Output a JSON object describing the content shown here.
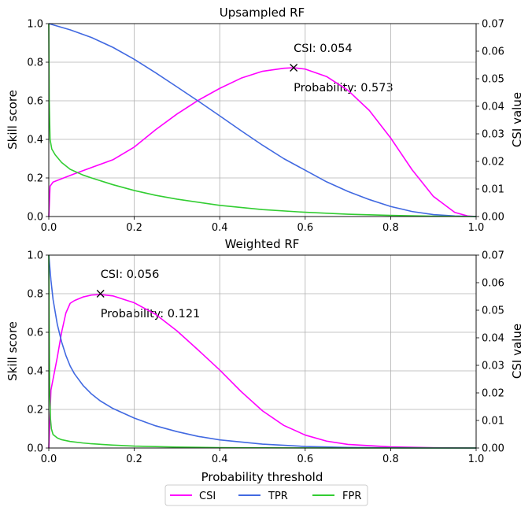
{
  "chart_data": [
    {
      "type": "line",
      "title": "Upsampled RF",
      "xlabel": "",
      "ylabel": "Skill score",
      "ylabel_right": "CSI value",
      "xlim": [
        0.0,
        1.0
      ],
      "ylim": [
        0.0,
        1.0
      ],
      "ylim_right": [
        0.0,
        0.07
      ],
      "grid": true,
      "xticks": [
        "0.0",
        "0.2",
        "0.4",
        "0.6",
        "0.8",
        "1.0"
      ],
      "yticks": [
        "0.0",
        "0.2",
        "0.4",
        "0.6",
        "0.8",
        "1.0"
      ],
      "yticks_right": [
        "0.00",
        "0.01",
        "0.02",
        "0.03",
        "0.04",
        "0.05",
        "0.06",
        "0.07"
      ],
      "series": [
        {
          "name": "CSI",
          "color": "#ff00ff",
          "axis": "right",
          "x": [
            0.0,
            0.003,
            0.01,
            0.03,
            0.06,
            0.1,
            0.15,
            0.2,
            0.25,
            0.3,
            0.35,
            0.4,
            0.45,
            0.5,
            0.55,
            0.573,
            0.6,
            0.65,
            0.7,
            0.75,
            0.8,
            0.85,
            0.9,
            0.95,
            0.98,
            1.0
          ],
          "y": [
            0.0,
            0.011,
            0.0125,
            0.0137,
            0.0155,
            0.0178,
            0.0206,
            0.0252,
            0.0315,
            0.0372,
            0.0422,
            0.0465,
            0.0502,
            0.0527,
            0.0538,
            0.054,
            0.0535,
            0.0508,
            0.0458,
            0.0385,
            0.0285,
            0.017,
            0.0073,
            0.0015,
            0.0002,
            0.0
          ]
        },
        {
          "name": "TPR",
          "color": "#4169e1",
          "axis": "left",
          "x": [
            0.0,
            0.05,
            0.1,
            0.15,
            0.2,
            0.25,
            0.3,
            0.35,
            0.4,
            0.45,
            0.5,
            0.55,
            0.6,
            0.65,
            0.7,
            0.75,
            0.8,
            0.85,
            0.9,
            0.95,
            1.0
          ],
          "y": [
            1.0,
            0.968,
            0.928,
            0.877,
            0.815,
            0.745,
            0.672,
            0.598,
            0.522,
            0.445,
            0.37,
            0.3,
            0.24,
            0.18,
            0.13,
            0.088,
            0.052,
            0.026,
            0.01,
            0.003,
            0.0
          ]
        },
        {
          "name": "FPR",
          "color": "#32cd32",
          "axis": "left",
          "x": [
            0.0,
            0.001,
            0.003,
            0.007,
            0.015,
            0.03,
            0.05,
            0.08,
            0.1,
            0.15,
            0.2,
            0.25,
            0.3,
            0.4,
            0.5,
            0.6,
            0.7,
            0.8,
            0.9,
            1.0
          ],
          "y": [
            1.0,
            0.6,
            0.4,
            0.35,
            0.32,
            0.28,
            0.245,
            0.215,
            0.2,
            0.165,
            0.135,
            0.11,
            0.09,
            0.058,
            0.036,
            0.022,
            0.012,
            0.006,
            0.002,
            0.0
          ]
        }
      ],
      "marker": {
        "x": 0.573,
        "y": 0.054,
        "symbol": "x"
      },
      "annotations": [
        {
          "text": "CSI: 0.054"
        },
        {
          "text": "Probability: 0.573"
        }
      ]
    },
    {
      "type": "line",
      "title": "Weighted RF",
      "xlabel": "Probability threshold",
      "ylabel": "Skill score",
      "ylabel_right": "CSI value",
      "xlim": [
        0.0,
        1.0
      ],
      "ylim": [
        0.0,
        1.0
      ],
      "ylim_right": [
        0.0,
        0.07
      ],
      "grid": true,
      "xticks": [
        "0.0",
        "0.2",
        "0.4",
        "0.6",
        "0.8",
        "1.0"
      ],
      "yticks": [
        "0.0",
        "0.2",
        "0.4",
        "0.6",
        "0.8",
        "1.0"
      ],
      "yticks_right": [
        "0.00",
        "0.01",
        "0.02",
        "0.03",
        "0.04",
        "0.05",
        "0.06",
        "0.07"
      ],
      "series": [
        {
          "name": "CSI",
          "color": "#ff00ff",
          "axis": "right",
          "x": [
            0.0,
            0.005,
            0.01,
            0.02,
            0.03,
            0.04,
            0.05,
            0.06,
            0.08,
            0.1,
            0.121,
            0.15,
            0.2,
            0.25,
            0.3,
            0.35,
            0.4,
            0.45,
            0.5,
            0.55,
            0.6,
            0.65,
            0.7,
            0.8,
            0.9,
            1.0
          ],
          "y": [
            0.0,
            0.021,
            0.025,
            0.033,
            0.042,
            0.049,
            0.0525,
            0.0535,
            0.0548,
            0.0555,
            0.0557,
            0.0552,
            0.0527,
            0.0485,
            0.0425,
            0.0355,
            0.0283,
            0.0205,
            0.0135,
            0.0082,
            0.0047,
            0.0025,
            0.0013,
            0.0004,
            0.0001,
            0.0
          ]
        },
        {
          "name": "TPR",
          "color": "#4169e1",
          "axis": "left",
          "x": [
            0.0,
            0.005,
            0.01,
            0.02,
            0.03,
            0.04,
            0.05,
            0.06,
            0.08,
            0.1,
            0.12,
            0.15,
            0.2,
            0.25,
            0.3,
            0.35,
            0.4,
            0.5,
            0.6,
            0.7,
            0.8,
            0.9,
            1.0
          ],
          "y": [
            1.0,
            0.87,
            0.77,
            0.64,
            0.55,
            0.48,
            0.425,
            0.385,
            0.325,
            0.28,
            0.245,
            0.205,
            0.155,
            0.115,
            0.085,
            0.06,
            0.042,
            0.02,
            0.008,
            0.003,
            0.001,
            0.0,
            0.0
          ]
        },
        {
          "name": "FPR",
          "color": "#32cd32",
          "axis": "left",
          "x": [
            0.0,
            0.001,
            0.002,
            0.004,
            0.006,
            0.01,
            0.02,
            0.03,
            0.05,
            0.08,
            0.1,
            0.15,
            0.2,
            0.3,
            0.4,
            0.5,
            0.6,
            0.7,
            1.0
          ],
          "y": [
            1.0,
            0.6,
            0.3,
            0.15,
            0.1,
            0.07,
            0.052,
            0.043,
            0.034,
            0.026,
            0.022,
            0.015,
            0.01,
            0.005,
            0.002,
            0.001,
            0.0005,
            0.0,
            0.0
          ]
        }
      ],
      "marker": {
        "x": 0.121,
        "y": 0.056,
        "symbol": "x"
      },
      "annotations": [
        {
          "text": "CSI: 0.056"
        },
        {
          "text": "Probability: 0.121"
        }
      ]
    }
  ],
  "legend": {
    "placement": "bottom-center",
    "items": [
      {
        "label": "CSI",
        "color": "#ff00ff"
      },
      {
        "label": "TPR",
        "color": "#4169e1"
      },
      {
        "label": "FPR",
        "color": "#32cd32"
      }
    ]
  }
}
